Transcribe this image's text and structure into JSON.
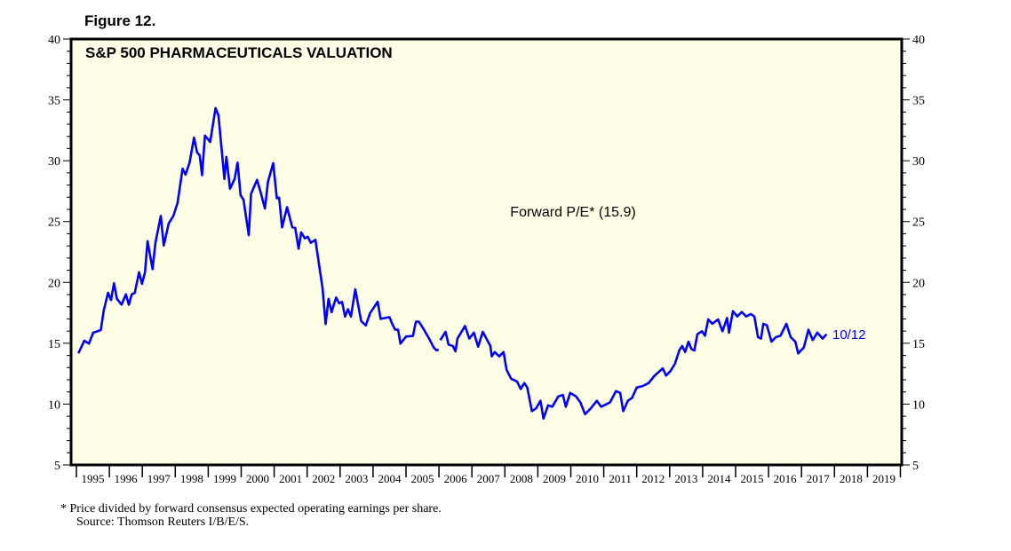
{
  "figure_label": "Figure 12.",
  "chart_data": {
    "type": "line",
    "title": "S&P 500 PHARMACEUTICALS VALUATION",
    "annotation": "Forward P/E* (15.9)",
    "end_label": "10/12",
    "ylim": [
      5,
      40
    ],
    "yticks": [
      5,
      10,
      15,
      20,
      25,
      30,
      35,
      40
    ],
    "xlim": [
      1995,
      2020
    ],
    "xtick_labels": [
      "1995",
      "1996",
      "1997",
      "1998",
      "1999",
      "2000",
      "2001",
      "2002",
      "2003",
      "2004",
      "2005",
      "2006",
      "2007",
      "2008",
      "2009",
      "2010",
      "2011",
      "2012",
      "2013",
      "2014",
      "2015",
      "2016",
      "2017",
      "2018",
      "2019"
    ],
    "grid": false,
    "background_color": "#fffee6",
    "line_color": "#0000ff",
    "series": [
      {
        "x": [
          1995.06,
          1995.24,
          1995.38,
          1995.51,
          1995.65,
          1995.74,
          1995.83,
          1995.96,
          1996.05,
          1996.14,
          1996.23,
          1996.37,
          1996.5,
          1996.59,
          1996.68,
          1996.77,
          1996.9,
          1996.99,
          1997.08,
          1997.16,
          1997.31,
          1997.4,
          1997.56,
          1997.65,
          1997.8,
          1997.94,
          1998.07,
          1998.22,
          1998.31,
          1998.43,
          1998.57,
          1998.66,
          1998.74,
          1998.81,
          1998.9,
          1999.06,
          1999.22,
          1999.31,
          1999.49,
          1999.55,
          1999.66,
          1999.8,
          1999.89,
          1999.98,
          2000.07,
          2000.23,
          2000.3,
          2000.48,
          2000.59,
          2000.72,
          2000.81,
          2000.97,
          2001.08,
          2001.15,
          2001.24,
          2001.39,
          2001.55,
          2001.64,
          2001.74,
          2001.82,
          2001.93,
          2002.02,
          2002.11,
          2002.25,
          2002.47,
          2002.56,
          2002.65,
          2002.74,
          2002.88,
          2002.97,
          2003.06,
          2003.15,
          2003.24,
          2003.33,
          2003.46,
          2003.64,
          2003.78,
          2003.91,
          2004.14,
          2004.23,
          2004.5,
          2004.58,
          2004.67,
          2004.76,
          2004.83,
          2005.0,
          2005.21,
          2005.3,
          2005.39,
          2005.52,
          2005.7,
          2005.84,
          2005.93,
          2005.99,
          2006.01,
          2006.04,
          2006.2,
          2006.29,
          2006.42,
          2006.5,
          2006.56,
          2006.79,
          2006.92,
          2007.06,
          2007.19,
          2007.33,
          2007.56,
          2007.6,
          2007.69,
          2007.83,
          2007.96,
          2008.05,
          2008.19,
          2008.37,
          2008.48,
          2008.59,
          2008.68,
          2008.82,
          2008.95,
          2009.08,
          2009.17,
          2009.31,
          2009.44,
          2009.62,
          2009.76,
          2009.85,
          2009.98,
          2010.16,
          2010.29,
          2010.43,
          2010.61,
          2010.79,
          2010.92,
          2011.1,
          2011.19,
          2011.37,
          2011.5,
          2011.59,
          2011.73,
          2011.86,
          2012.0,
          2012.18,
          2012.36,
          2012.54,
          2012.79,
          2012.89,
          2013.02,
          2013.16,
          2013.29,
          2013.38,
          2013.47,
          2013.57,
          2013.66,
          2013.75,
          2013.84,
          2013.98,
          2014.07,
          2014.17,
          2014.29,
          2014.47,
          2014.6,
          2014.74,
          2014.8,
          2014.92,
          2015.05,
          2015.19,
          2015.32,
          2015.46,
          2015.57,
          2015.68,
          2015.77,
          2015.84,
          2015.95,
          2016.09,
          2016.22,
          2016.36,
          2016.54,
          2016.67,
          2016.81,
          2016.9,
          2016.98,
          2017.07,
          2017.21,
          2017.34,
          2017.48,
          2017.64,
          2017.76
        ],
        "y": [
          14.17,
          15.21,
          14.97,
          15.87,
          15.99,
          16.1,
          17.7,
          19.15,
          18.55,
          19.93,
          18.66,
          18.17,
          19.02,
          18.17,
          19.02,
          19.14,
          20.84,
          19.88,
          20.84,
          23.39,
          21.09,
          23.27,
          25.46,
          23.03,
          24.85,
          25.46,
          26.55,
          29.35,
          28.86,
          29.83,
          31.9,
          30.69,
          30.44,
          28.81,
          32.07,
          31.54,
          34.33,
          33.73,
          28.5,
          30.32,
          27.7,
          28.5,
          29.84,
          27.16,
          26.79,
          23.88,
          27.28,
          28.43,
          27.4,
          26.07,
          28.26,
          29.8,
          26.91,
          26.96,
          24.53,
          26.18,
          24.53,
          24.48,
          22.77,
          24.11,
          23.62,
          23.75,
          23.26,
          23.5,
          19.5,
          16.58,
          18.65,
          17.55,
          18.77,
          18.28,
          18.4,
          17.19,
          17.8,
          17.19,
          19.43,
          16.83,
          16.46,
          17.48,
          18.41,
          17.0,
          17.15,
          16.6,
          16.11,
          16.11,
          14.97,
          15.55,
          15.6,
          16.77,
          16.77,
          16.23,
          15.38,
          14.65,
          14.41,
          14.48,
          null,
          15.26,
          15.94,
          14.89,
          14.77,
          14.33,
          15.38,
          16.42,
          15.38,
          15.87,
          14.72,
          15.94,
          14.77,
          13.92,
          14.28,
          13.92,
          14.28,
          12.82,
          12.09,
          11.85,
          11.24,
          11.73,
          11.36,
          9.42,
          9.66,
          10.27,
          8.81,
          9.9,
          9.78,
          10.63,
          10.75,
          9.78,
          10.92,
          10.63,
          10.14,
          9.17,
          9.66,
          10.27,
          9.78,
          10.02,
          10.14,
          11.07,
          10.92,
          9.42,
          10.27,
          10.51,
          11.36,
          11.48,
          11.73,
          12.33,
          12.94,
          12.34,
          12.7,
          13.31,
          14.41,
          14.77,
          14.28,
          15.13,
          14.52,
          14.41,
          15.75,
          15.99,
          15.62,
          16.96,
          16.6,
          16.96,
          15.99,
          17.08,
          15.87,
          17.64,
          17.2,
          17.57,
          17.2,
          17.4,
          17.2,
          15.5,
          15.38,
          16.6,
          16.47,
          15.13,
          15.5,
          15.62,
          16.6,
          15.5,
          15.13,
          14.16,
          14.41,
          14.65,
          16.11,
          15.26,
          15.87,
          15.38,
          15.75
        ]
      }
    ]
  },
  "footnotes": {
    "note": "*   Price divided by forward consensus expected operating earnings per share.",
    "source": "Source: Thomson Reuters I/B/E/S."
  }
}
